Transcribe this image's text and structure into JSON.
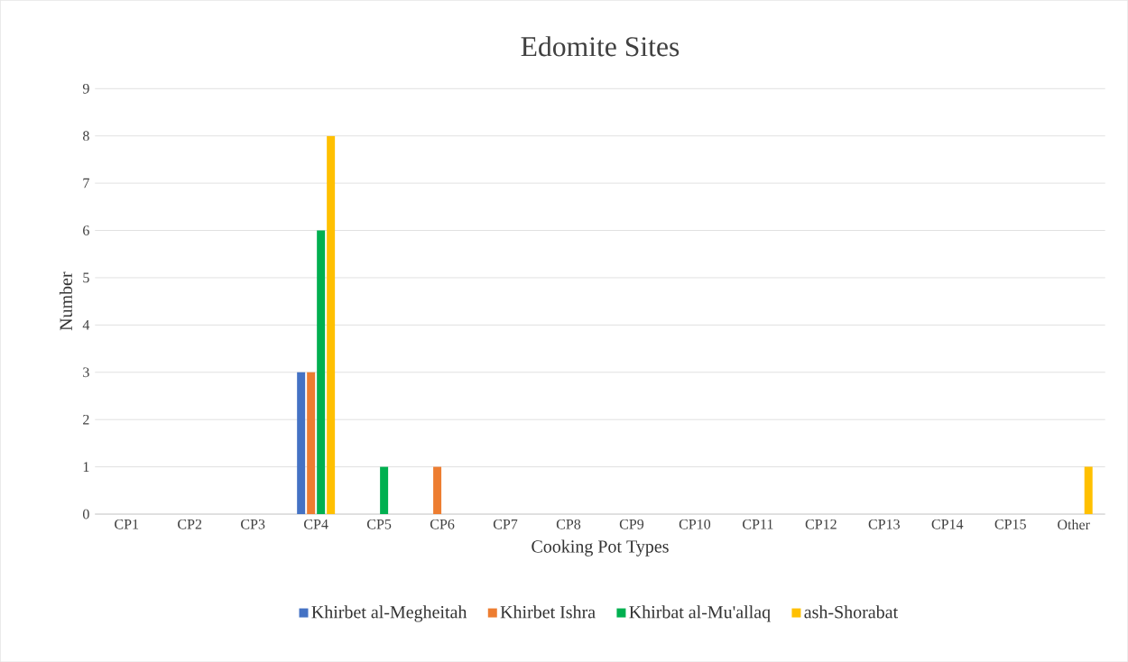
{
  "chart_data": {
    "type": "bar",
    "title": "Edomite Sites",
    "xlabel": "Cooking Pot Types",
    "ylabel": "Number",
    "categories": [
      "CP1",
      "CP2",
      "CP3",
      "CP4",
      "CP5",
      "CP6",
      "CP7",
      "CP8",
      "CP9",
      "CP10",
      "CP11",
      "CP12",
      "CP13",
      "CP14",
      "CP15",
      "Other"
    ],
    "series": [
      {
        "name": "Khirbet al-Megheitah",
        "color": "#4472c4",
        "values": [
          0,
          0,
          0,
          3,
          0,
          0,
          0,
          0,
          0,
          0,
          0,
          0,
          0,
          0,
          0,
          0
        ]
      },
      {
        "name": "Khirbet Ishra",
        "color": "#ed7d31",
        "values": [
          0,
          0,
          0,
          3,
          0,
          1,
          0,
          0,
          0,
          0,
          0,
          0,
          0,
          0,
          0,
          0
        ]
      },
      {
        "name": "Khirbat al-Mu'allaq",
        "color": "#00b050",
        "values": [
          0,
          0,
          0,
          6,
          1,
          0,
          0,
          0,
          0,
          0,
          0,
          0,
          0,
          0,
          0,
          0
        ]
      },
      {
        "name": "ash-Shorabat",
        "color": "#ffc000",
        "values": [
          0,
          0,
          0,
          8,
          0,
          0,
          0,
          0,
          0,
          0,
          0,
          0,
          0,
          0,
          0,
          1
        ]
      }
    ],
    "ylim": [
      0,
      9
    ],
    "yticks": [
      0,
      1,
      2,
      3,
      4,
      5,
      6,
      7,
      8,
      9
    ],
    "grid": "y",
    "legend": "bottom"
  }
}
